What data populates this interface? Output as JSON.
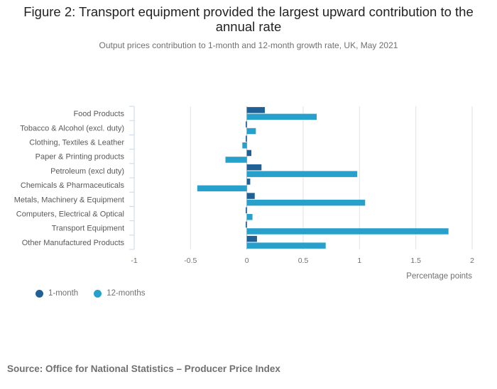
{
  "chart_data": {
    "type": "bar",
    "orientation": "horizontal",
    "title": "Figure 2: Transport equipment provided the largest upward contribution to the annual rate",
    "subtitle": "Output prices contribution to 1-month and 12-month growth rate, UK, May 2021",
    "xlabel": "Percentage points",
    "ylabel": "",
    "xlim": [
      -1,
      2
    ],
    "xticks": [
      -1,
      -0.5,
      0,
      0.5,
      1,
      1.5,
      2
    ],
    "xtick_labels": [
      "-1",
      "-0.5",
      "0",
      "0.5",
      "1",
      "1.5",
      "2"
    ],
    "grid": true,
    "legend_position": "bottom-left",
    "categories": [
      "Food Products",
      "Tobacco & Alcohol (excl. duty)",
      "Clothing, Textiles & Leather",
      "Paper & Printing products",
      "Petroleum (excl duty)",
      "Chemicals & Pharmaceuticals",
      "Metals, Machinery & Equipment",
      "Computers, Electrical & Optical",
      "Transport Equipment",
      "Other Manufactured Products"
    ],
    "series": [
      {
        "name": "1-month",
        "color": "#206095",
        "values": [
          0.16,
          -0.01,
          -0.01,
          0.04,
          0.13,
          0.03,
          0.07,
          -0.01,
          -0.01,
          0.09
        ]
      },
      {
        "name": "12-months",
        "color": "#27a0cc",
        "values": [
          0.62,
          0.08,
          -0.04,
          -0.19,
          0.98,
          -0.44,
          1.05,
          0.05,
          1.79,
          0.7
        ]
      }
    ]
  },
  "source": "Source: Office for National Statistics – Producer Price Index"
}
